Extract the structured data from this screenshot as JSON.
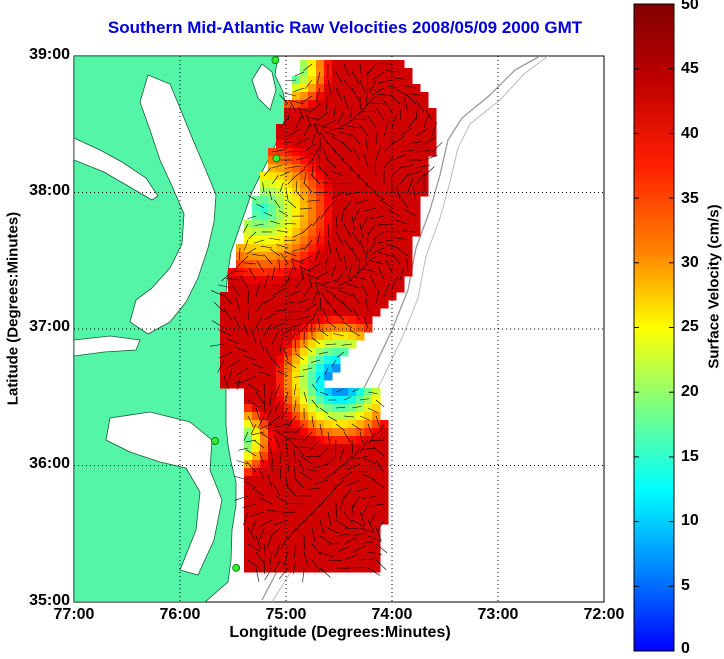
{
  "title": "Southern Mid-Atlantic Raw Velocities 2008/05/09 2000 GMT",
  "x_axis": {
    "label": "Longitude (Degrees:Minutes)",
    "ticks": [
      "77:00",
      "76:00",
      "75:00",
      "74:00",
      "73:00",
      "72:00"
    ],
    "range": [
      -77,
      -72
    ]
  },
  "y_axis": {
    "label": "Latitude (Degrees:Minutes)",
    "ticks": [
      "39:00",
      "38:00",
      "37:00",
      "36:00",
      "35:00"
    ],
    "range": [
      35,
      39
    ]
  },
  "colorbar": {
    "label": "Surface Velocity (cm/s)",
    "ticks": [
      "50",
      "45",
      "40",
      "35",
      "30",
      "25",
      "20",
      "15",
      "10",
      "5",
      "0"
    ],
    "range": [
      0,
      50
    ],
    "colormap": "jet"
  },
  "colors": {
    "land": "#55f5a8",
    "water": "#ffffff",
    "title": "#0000d8",
    "stations": "#33ee33",
    "bathymetry": "#999999"
  },
  "map_data": {
    "grid": "dotted",
    "stations": [
      {
        "lon": -75.1,
        "lat": 38.97
      },
      {
        "lon": -75.09,
        "lat": 38.25
      },
      {
        "lon": -75.67,
        "lat": 36.18
      },
      {
        "lon": -75.47,
        "lat": 35.25
      }
    ]
  }
}
